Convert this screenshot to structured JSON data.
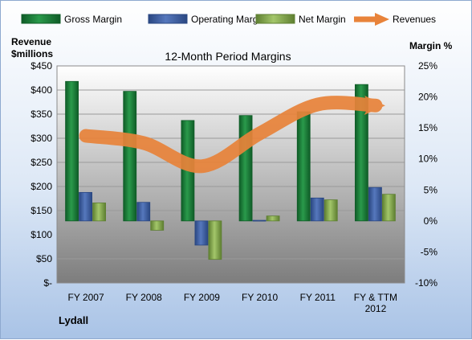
{
  "chart_data": {
    "type": "bar",
    "title": "12-Month Period Margins",
    "company": "Lydall",
    "categories": [
      "FY 2007",
      "FY 2008",
      "FY 2009",
      "FY 2010",
      "FY 2011",
      "FY & TTM 2012"
    ],
    "category_lines": [
      [
        "FY 2007"
      ],
      [
        "FY 2008"
      ],
      [
        "FY 2009"
      ],
      [
        "FY 2010"
      ],
      [
        "FY 2011"
      ],
      [
        "FY & TTM",
        "2012"
      ]
    ],
    "y_left": {
      "label_lines": [
        "Revenue",
        "$millions"
      ],
      "ylim": [
        0,
        450
      ],
      "tick_labels": [
        "$-",
        "$50",
        "$100",
        "$150",
        "$200",
        "$250",
        "$300",
        "$350",
        "$400",
        "$450"
      ]
    },
    "y_right": {
      "label": "Margin %",
      "ylim": [
        -10,
        25
      ],
      "tick_labels": [
        "-10%",
        "-5%",
        "0%",
        "5%",
        "10%",
        "15%",
        "20%",
        "25%"
      ]
    },
    "series": [
      {
        "name": "Gross Margin",
        "axis": "right",
        "kind": "bar",
        "color": "#1e7a3a",
        "values": [
          22.5,
          20.9,
          16.2,
          17.0,
          17.6,
          22.0
        ]
      },
      {
        "name": "Operating Margin",
        "axis": "right",
        "kind": "bar",
        "color": "#3b5fa3",
        "values": [
          4.6,
          3.0,
          -3.9,
          0.1,
          3.7,
          5.4
        ]
      },
      {
        "name": "Net Margin",
        "axis": "right",
        "kind": "bar",
        "color": "#7fa34a",
        "values": [
          2.9,
          -1.5,
          -6.2,
          0.8,
          3.4,
          4.3
        ]
      },
      {
        "name": "Revenues",
        "axis": "left",
        "kind": "line",
        "color": "#e8833a",
        "values": [
          305,
          290,
          242,
          310,
          370,
          368
        ]
      }
    ],
    "grid": true,
    "legend_position": "top"
  }
}
